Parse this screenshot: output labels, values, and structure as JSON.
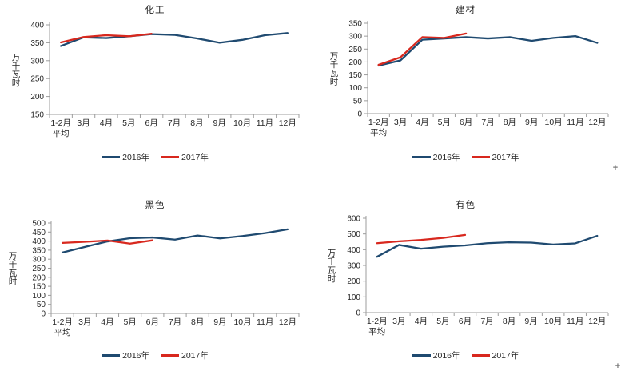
{
  "window": {
    "background": "#ffffff"
  },
  "colors": {
    "blue_2016": "#1F4A70",
    "red_2017": "#D8281E",
    "axis_line": "#9C9C9C",
    "tick_text": "#262626"
  },
  "decorations": {
    "plus_marker": "+"
  },
  "chart_data": [
    {
      "type": "line",
      "title": "化工",
      "xlabel": "",
      "ylabel": "万千瓦时",
      "categories": [
        "1-2月",
        "3月",
        "4月",
        "5月",
        "6月",
        "7月",
        "8月",
        "9月",
        "10月",
        "11月",
        "12月"
      ],
      "first_category_line2": "平均",
      "ylim": [
        150,
        400
      ],
      "y_step": 50,
      "grid": false,
      "legend_position": "bottom",
      "series": [
        {
          "name": "2016年",
          "color": "blue_2016",
          "values": [
            341,
            365,
            363,
            368,
            374,
            372,
            362,
            350,
            358,
            371,
            377
          ]
        },
        {
          "name": "2017年",
          "color": "red_2017",
          "values": [
            351,
            366,
            371,
            368,
            375
          ]
        }
      ]
    },
    {
      "type": "line",
      "title": "建材",
      "xlabel": "",
      "ylabel": "万千瓦时",
      "categories": [
        "1-2月",
        "3月",
        "4月",
        "5月",
        "6月",
        "7月",
        "8月",
        "9月",
        "10月",
        "11月",
        "12月"
      ],
      "first_category_line2": "平均",
      "ylim": [
        0,
        350
      ],
      "y_step": 50,
      "grid": false,
      "legend_position": "bottom",
      "series": [
        {
          "name": "2016年",
          "color": "blue_2016",
          "values": [
            186,
            206,
            286,
            291,
            296,
            291,
            296,
            282,
            293,
            300,
            274
          ]
        },
        {
          "name": "2017年",
          "color": "red_2017",
          "values": [
            189,
            218,
            296,
            293,
            310
          ]
        }
      ]
    },
    {
      "type": "line",
      "title": "黑色",
      "xlabel": "",
      "ylabel": "万千瓦时",
      "categories": [
        "1-2月",
        "3月",
        "4月",
        "5月",
        "6月",
        "7月",
        "8月",
        "9月",
        "10月",
        "11月",
        "12月"
      ],
      "first_category_line2": "平均",
      "ylim": [
        0,
        500
      ],
      "y_step": 50,
      "grid": false,
      "legend_position": "bottom",
      "series": [
        {
          "name": "2016年",
          "color": "blue_2016",
          "values": [
            337,
            368,
            398,
            416,
            420,
            408,
            431,
            415,
            428,
            444,
            465
          ]
        },
        {
          "name": "2017年",
          "color": "red_2017",
          "values": [
            390,
            396,
            403,
            386,
            404
          ]
        }
      ]
    },
    {
      "type": "line",
      "title": "有色",
      "xlabel": "",
      "ylabel": "万千瓦时",
      "categories": [
        "1-2月",
        "3月",
        "4月",
        "5月",
        "6月",
        "7月",
        "8月",
        "9月",
        "10月",
        "11月",
        "12月"
      ],
      "first_category_line2": "平均",
      "ylim": [
        0,
        600
      ],
      "y_step": 100,
      "grid": false,
      "legend_position": "bottom",
      "series": [
        {
          "name": "2016年",
          "color": "blue_2016",
          "values": [
            355,
            430,
            406,
            419,
            427,
            441,
            447,
            445,
            433,
            440,
            488
          ]
        },
        {
          "name": "2017年",
          "color": "red_2017",
          "values": [
            441,
            453,
            462,
            475,
            494
          ]
        }
      ]
    }
  ]
}
